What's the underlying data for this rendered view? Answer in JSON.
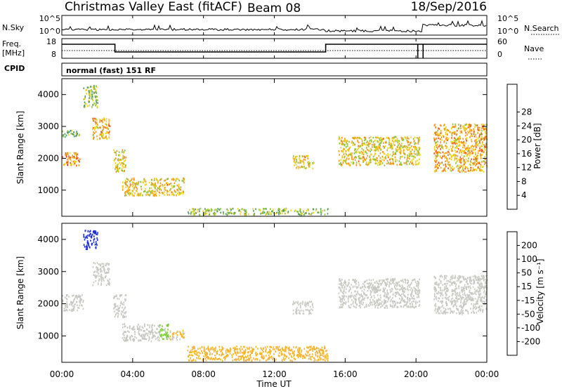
{
  "header": {
    "title": "Christmas Valley East (fitACF)",
    "beam_label": "Beam 08",
    "date": "18/Sep/2016"
  },
  "nsky_panel": {
    "left_label": "N.Sky",
    "right_label": "N.Search",
    "left_ticks": [
      "10^5",
      "10^0"
    ],
    "right_ticks": [
      "10^5",
      "10^0"
    ]
  },
  "freq_panel": {
    "left_label_1": "Freq.",
    "left_label_2": "[MHz]",
    "right_label": "Nave",
    "left_ticks": [
      "18",
      "8"
    ],
    "right_ticks": [
      "60",
      "0"
    ]
  },
  "cpid": {
    "label": "CPID",
    "value": "normal (fast) 151 RF"
  },
  "colors": {
    "power_scale": [
      "#0b1fe0",
      "#2a49a8",
      "#2e7d7a",
      "#4f9a5e",
      "#8fc23c",
      "#f0d21e",
      "#f39a1a",
      "#ef5a16",
      "#e8130d"
    ],
    "velocity_scale": [
      "#e8130d",
      "#ef5a16",
      "#f38a1a",
      "#f6b42a",
      "#c8c8c2",
      "#7fcf3c",
      "#3f8f43",
      "#2a61b4",
      "#1a2fd8"
    ]
  },
  "chart_data": [
    {
      "type": "heatmap",
      "name": "power",
      "xlabel": "",
      "ylabel": "Slant Range [km]",
      "xlim_hours": [
        0,
        24
      ],
      "ylim": [
        180,
        4500
      ],
      "y_ticks": [
        "1000",
        "2000",
        "3000",
        "4000"
      ],
      "y_tick_values": [
        1000,
        2000,
        3000,
        4000
      ],
      "colorbar": {
        "label": "Power [dB]",
        "ticks": [
          "4",
          "8",
          "12",
          "16",
          "20",
          "24",
          "28"
        ],
        "range": [
          0,
          32
        ]
      },
      "echo_regions": [
        {
          "t0": 0.0,
          "t1": 1.0,
          "r0": 1800,
          "r1": 2200,
          "level": 24
        },
        {
          "t0": 0.0,
          "t1": 1.0,
          "r0": 2700,
          "r1": 2900,
          "level": 14
        },
        {
          "t0": 1.2,
          "t1": 2.0,
          "r0": 3600,
          "r1": 4300,
          "level": 16
        },
        {
          "t0": 1.7,
          "t1": 2.7,
          "r0": 2600,
          "r1": 3300,
          "level": 22
        },
        {
          "t0": 2.9,
          "t1": 3.6,
          "r0": 1600,
          "r1": 2300,
          "level": 20
        },
        {
          "t0": 3.4,
          "t1": 6.9,
          "r0": 850,
          "r1": 1400,
          "level": 20
        },
        {
          "t0": 7.0,
          "t1": 15.0,
          "r0": 250,
          "r1": 450,
          "level": 16
        },
        {
          "t0": 13.0,
          "t1": 14.2,
          "r0": 1700,
          "r1": 2100,
          "level": 20
        },
        {
          "t0": 15.6,
          "t1": 20.2,
          "r0": 1800,
          "r1": 2700,
          "level": 20
        },
        {
          "t0": 21.0,
          "t1": 24.0,
          "r0": 1600,
          "r1": 3100,
          "level": 22
        }
      ]
    },
    {
      "type": "heatmap",
      "name": "velocity",
      "xlabel": "Time UT",
      "ylabel": "Slant Range [km]",
      "xlim_hours": [
        0,
        24
      ],
      "ylim": [
        180,
        4500
      ],
      "x_ticks": [
        "00:00",
        "04:00",
        "08:00",
        "12:00",
        "16:00",
        "20:00",
        "00:00"
      ],
      "x_tick_values": [
        0,
        4,
        8,
        12,
        16,
        20,
        24
      ],
      "y_ticks": [
        "1000",
        "2000",
        "3000",
        "4000"
      ],
      "y_tick_values": [
        1000,
        2000,
        3000,
        4000
      ],
      "colorbar": {
        "label": "Velocity [m s⁻¹]",
        "ticks": [
          "-200",
          "-100",
          "-50",
          "-15",
          "15",
          "50",
          "100",
          "200"
        ],
        "range": [
          -250,
          250
        ]
      },
      "echo_regions": [
        {
          "t0": 0.0,
          "t1": 1.2,
          "r0": 1800,
          "r1": 2300,
          "level": 0
        },
        {
          "t0": 1.2,
          "t1": 2.0,
          "r0": 3700,
          "r1": 4300,
          "level": 220
        },
        {
          "t0": 1.7,
          "t1": 2.7,
          "r0": 2600,
          "r1": 3300,
          "level": 0
        },
        {
          "t0": 2.9,
          "t1": 3.6,
          "r0": 1600,
          "r1": 2300,
          "level": 0
        },
        {
          "t0": 3.4,
          "t1": 5.5,
          "r0": 850,
          "r1": 1400,
          "level": 0
        },
        {
          "t0": 5.5,
          "t1": 6.0,
          "r0": 850,
          "r1": 1400,
          "level": 40
        },
        {
          "t0": 6.0,
          "t1": 6.9,
          "r0": 900,
          "r1": 1200,
          "level": -30
        },
        {
          "t0": 7.0,
          "t1": 15.0,
          "r0": 250,
          "r1": 700,
          "level": -50
        },
        {
          "t0": 13.0,
          "t1": 14.2,
          "r0": 1700,
          "r1": 2100,
          "level": 0
        },
        {
          "t0": 15.6,
          "t1": 20.2,
          "r0": 1900,
          "r1": 2800,
          "level": 0
        },
        {
          "t0": 21.0,
          "t1": 24.0,
          "r0": 1700,
          "r1": 2900,
          "level": 0
        }
      ]
    }
  ]
}
